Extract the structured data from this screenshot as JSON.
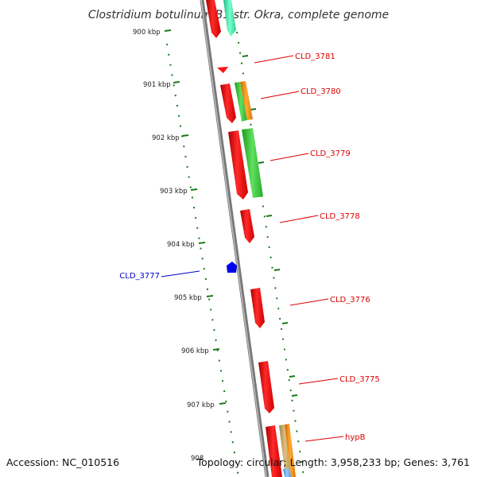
{
  "title": "Clostridium botulinum B1 str. Okra, complete genome",
  "footer": {
    "accession": "Accession: NC_010516",
    "summary": "Topology: circular; Length: 3,958,233 bp; Genes: 3,761"
  },
  "ruler": {
    "labels": [
      "900 kbp",
      "901 kbp",
      "902 kbp",
      "903 kbp",
      "904 kbp",
      "905 kbp",
      "906 kbp",
      "907 kbp",
      "908"
    ],
    "color": "#1a7a1a"
  },
  "genes": [
    {
      "name": "CLD_3781",
      "color": "#dd0000"
    },
    {
      "name": "CLD_3780",
      "color": "#dd0000"
    },
    {
      "name": "CLD_3779",
      "color": "#dd0000"
    },
    {
      "name": "CLD_3778",
      "color": "#dd0000"
    },
    {
      "name": "CLD_3777",
      "color": "#0000cc"
    },
    {
      "name": "CLD_3776",
      "color": "#dd0000"
    },
    {
      "name": "CLD_3775",
      "color": "#dd0000"
    },
    {
      "name": "hypB",
      "color": "#dd0000"
    }
  ],
  "colors": {
    "cds_forward": "#ff0000",
    "cds_reverse": "#0000ee",
    "gc_high": "#33cc33",
    "gc_low": "#ff8800",
    "backbone": "#888888"
  }
}
